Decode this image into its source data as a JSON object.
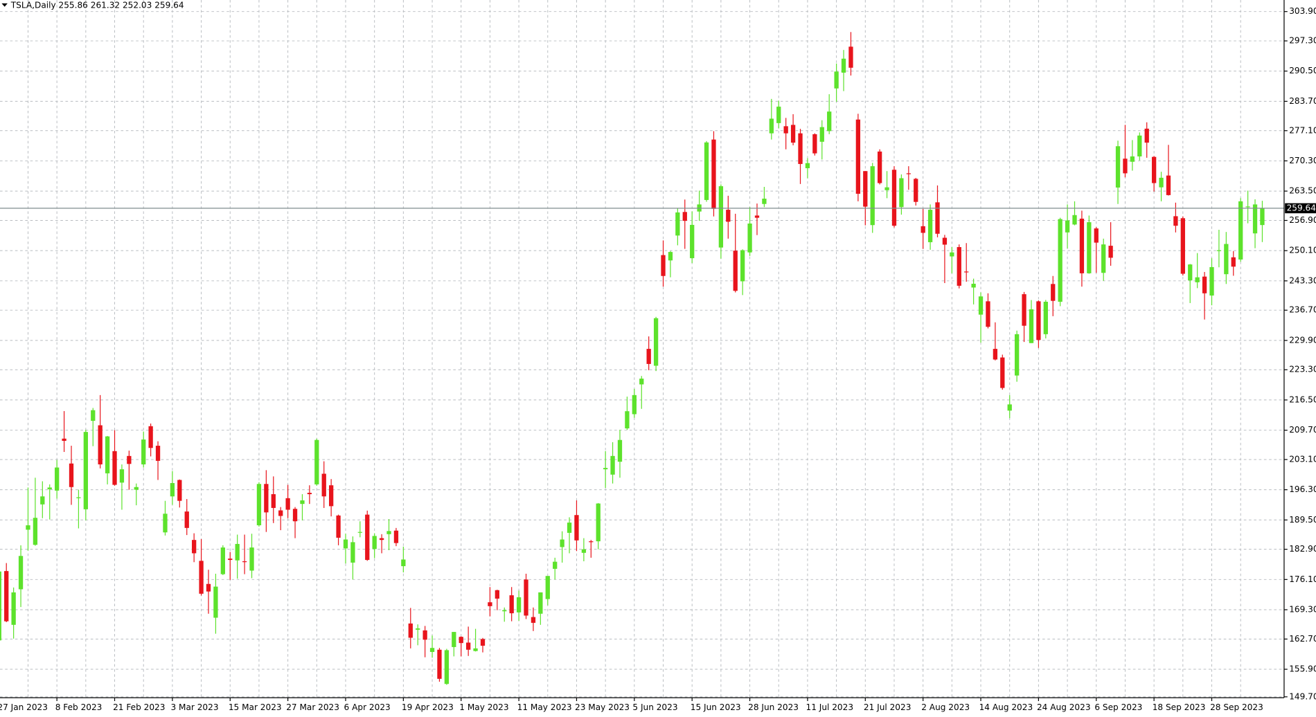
{
  "chart_data": {
    "type": "candlestick",
    "symbol": "TSLA,Daily",
    "categories": [
      "27 Jan 2023",
      null,
      null,
      null,
      null,
      null,
      null,
      null,
      "8 Feb 2023",
      null,
      null,
      null,
      null,
      null,
      null,
      null,
      "21 Feb 2023",
      null,
      null,
      null,
      null,
      null,
      null,
      null,
      "3 Mar 2023",
      null,
      null,
      null,
      null,
      null,
      null,
      null,
      "15 Mar 2023",
      null,
      null,
      null,
      null,
      null,
      null,
      null,
      "27 Mar 2023",
      null,
      null,
      null,
      null,
      null,
      null,
      null,
      "6 Apr 2023",
      null,
      null,
      null,
      null,
      null,
      null,
      null,
      "19 Apr 2023",
      null,
      null,
      null,
      null,
      null,
      null,
      null,
      "1 May 2023",
      null,
      null,
      null,
      null,
      null,
      null,
      null,
      "11 May 2023",
      null,
      null,
      null,
      null,
      null,
      null,
      null,
      "23 May 2023",
      null,
      null,
      null,
      null,
      null,
      null,
      null,
      "5 Jun 2023",
      null,
      null,
      null,
      null,
      null,
      null,
      null,
      "15 Jun 2023",
      null,
      null,
      null,
      null,
      null,
      null,
      null,
      "28 Jun 2023",
      null,
      null,
      null,
      null,
      null,
      null,
      null,
      "11 Jul 2023",
      null,
      null,
      null,
      null,
      null,
      null,
      null,
      "21 Jul 2023",
      null,
      null,
      null,
      null,
      null,
      null,
      null,
      "2 Aug 2023",
      null,
      null,
      null,
      null,
      null,
      null,
      null,
      "14 Aug 2023",
      null,
      null,
      null,
      null,
      null,
      null,
      null,
      "24 Aug 2023",
      null,
      null,
      null,
      null,
      null,
      null,
      null,
      "6 Sep 2023",
      null,
      null,
      null,
      null,
      null,
      null,
      null,
      "18 Sep 2023",
      null,
      null,
      null,
      null,
      null,
      null,
      null,
      "28 Sep 2023",
      null,
      null,
      null,
      null,
      null,
      null,
      null
    ],
    "open": [
      162.4,
      178.0,
      165.9,
      173.9,
      187.3,
      183.9,
      193.0,
      196.4,
      196.1,
      207.8,
      202.2,
      194.4,
      191.9,
      211.8,
      210.8,
      199.99,
      204.99,
      197.9,
      203.9,
      196.3,
      202.0,
      210.6,
      206.2,
      186.7,
      194.8,
      198.5,
      191.4,
      185.0,
      180.3,
      175.1,
      167.5,
      177.3,
      180.8,
      180.4,
      180.2,
      178.1,
      188.3,
      197.6,
      195.3,
      191.65,
      194.4,
      192.0,
      193.1,
      195.6,
      197.5,
      199.9,
      197.3,
      190.5,
      183.1,
      179.9,
      186.7,
      190.7,
      182.96,
      185.4,
      186.3,
      187.1,
      179.1,
      166.2,
      164.8,
      164.65,
      159.8,
      160.3,
      152.6,
      160.9,
      163.2,
      161.9,
      160.0,
      162.7,
      170.98,
      173.7,
      168.95,
      172.55,
      168.7,
      176.1,
      167.65,
      168.4,
      171.7,
      178.5,
      183.4,
      186.6,
      190.6,
      182.1,
      184.7,
      184.7,
      200.9,
      199.7,
      202.6,
      210.1,
      213.3,
      220.0,
      228.0,
      224.2,
      249.1,
      247.9,
      253.5,
      258.8,
      248.4,
      258.9,
      261.5,
      275.1,
      250.8,
      259.3,
      250.1,
      243.2,
      249.7,
      258.0,
      260.6,
      276.5,
      278.8,
      278.1,
      278.4,
      276.5,
      268.65,
      276.3,
      274.6,
      277.0,
      286.6,
      290.15,
      296.0,
      279.6,
      268.0,
      255.85,
      272.4,
      263.7,
      268.3,
      259.9,
      267.5,
      266.26,
      255.6,
      252.0,
      260.97,
      253.0,
      248.8,
      250.9,
      245.4,
      241.8,
      235.7,
      238.7,
      228.0,
      226.06,
      214.1,
      222.0,
      240.3,
      229.3,
      238.7,
      231.3,
      242.6,
      238.6,
      254.2,
      255.98,
      257.3,
      245.0,
      255.1,
      245.1,
      251.2,
      264.3,
      270.8,
      270.1,
      271.3,
      277.55,
      271.2,
      264.35,
      267.0,
      257.85,
      257.4,
      243.4,
      242.98,
      244.26,
      240.0,
      250.0,
      244.8,
      248.6,
      248.1,
      260.0,
      253.98,
      255.86
    ],
    "high": [
      177.9,
      179.8,
      174.3,
      183.8,
      196.8,
      199.0,
      198.2,
      197.5,
      203.0,
      214.0,
      206.2,
      196.3,
      209.8,
      214.7,
      217.6,
      208.4,
      209.7,
      201.99,
      205.1,
      197.7,
      209.4,
      211.2,
      207.2,
      193.8,
      200.5,
      198.6,
      194.2,
      186.5,
      185.2,
      178.3,
      177.4,
      183.8,
      182.3,
      186.2,
      186.2,
      186.4,
      198.0,
      200.7,
      199.3,
      192.4,
      197.4,
      192.4,
      195.3,
      197.3,
      207.8,
      202.7,
      198.7,
      190.7,
      186.4,
      185.8,
      189.2,
      191.6,
      186.5,
      186.3,
      189.7,
      187.7,
      183.5,
      169.7,
      166.0,
      165.65,
      163.5,
      160.7,
      160.5,
      164.3,
      163.3,
      165.5,
      165.0,
      162.95,
      174.4,
      173.8,
      169.8,
      174.4,
      173.6,
      177.4,
      169.8,
      173.2,
      176.8,
      181.0,
      186.95,
      190.1,
      193.9,
      185.4,
      185.0,
      193.3,
      205.0,
      207.0,
      209.8,
      217.25,
      219.0,
      221.9,
      230.8,
      235.2,
      252.4,
      250.0,
      259.7,
      261.6,
      258.95,
      263.6,
      274.75,
      276.99,
      265.0,
      262.45,
      258.4,
      250.4,
      259.9,
      260.7,
      264.45,
      284.25,
      283.85,
      279.97,
      280.8,
      277.5,
      270.9,
      276.5,
      279.45,
      285.3,
      292.2,
      295.26,
      299.29,
      280.9,
      268.0,
      269.85,
      272.9,
      268.0,
      269.1,
      267.25,
      269.1,
      266.47,
      259.5,
      260.5,
      264.77,
      253.65,
      250.9,
      251.5,
      251.8,
      243.8,
      240.7,
      240.5,
      233.97,
      226.7,
      217.6,
      232.1,
      240.8,
      238.98,
      238.9,
      239.0,
      244.4,
      257.5,
      260.5,
      261.2,
      259.1,
      258.0,
      255.4,
      252.8,
      256.5,
      274.85,
      278.4,
      274.98,
      276.7,
      278.98,
      271.4,
      267.85,
      273.9,
      260.9,
      257.8,
      247.1,
      249.55,
      245.3,
      248.4,
      254.8,
      254.3,
      250.0,
      261.9,
      263.6,
      261.65,
      261.32
    ],
    "low": [
      161.1,
      166.5,
      162.8,
      169.9,
      182.6,
      183.7,
      189.9,
      189.6,
      194.3,
      204.8,
      192.9,
      187.6,
      189.4,
      206.1,
      201.1,
      197.5,
      197.2,
      191.8,
      196.3,
      192.8,
      201.3,
      203.8,
      198.5,
      186.0,
      192.9,
      192.3,
      186.1,
      180.0,
      172.5,
      168.4,
      163.9,
      177.1,
      176.0,
      176.3,
      177.3,
      176.4,
      188.0,
      186.8,
      188.8,
      187.2,
      189.9,
      185.4,
      189.4,
      193.1,
      197.2,
      192.2,
      190.3,
      183.8,
      179.7,
      176.1,
      185.6,
      180.3,
      180.9,
      182.0,
      182.7,
      183.6,
      177.7,
      160.6,
      161.3,
      158.6,
      158.5,
      153.1,
      152.4,
      158.8,
      158.8,
      158.9,
      159.9,
      159.7,
      167.8,
      169.2,
      166.6,
      166.7,
      166.8,
      167.2,
      164.5,
      165.9,
      170.3,
      176.1,
      179.9,
      182.0,
      182.5,
      180.2,
      181.0,
      182.9,
      196.7,
      197.7,
      199.0,
      209.75,
      212.5,
      214.5,
      223.2,
      223.0,
      242.0,
      244.1,
      251.3,
      250.5,
      247.3,
      256.8,
      261.1,
      257.8,
      248.3,
      252.8,
      240.7,
      240.1,
      248.9,
      253.6,
      259.9,
      275.1,
      277.6,
      272.9,
      273.8,
      265.1,
      266.4,
      271.5,
      270.6,
      276.3,
      283.6,
      286.0,
      289.5,
      261.2,
      255.8,
      254.1,
      265.0,
      261.9,
      255.3,
      258.2,
      263.8,
      260.25,
      250.5,
      250.3,
      253.1,
      242.8,
      245.0,
      241.6,
      243.1,
      238.0,
      229.4,
      232.6,
      225.4,
      218.8,
      212.4,
      220.6,
      229.55,
      229.3,
      228.2,
      230.35,
      235.35,
      237.6,
      250.6,
      255.8,
      242.0,
      244.9,
      245.1,
      243.3,
      246.7,
      260.6,
      266.6,
      268.1,
      270.4,
      271.0,
      263.4,
      261.2,
      262.5,
      254.2,
      244.5,
      238.3,
      241.66,
      234.6,
      237.8,
      246.35,
      242.6,
      244.45,
      247.6,
      256.25,
      250.65,
      252.03
    ],
    "close": [
      177.9,
      166.7,
      173.2,
      181.4,
      188.3,
      189.98,
      194.8,
      196.8,
      201.3,
      207.3,
      196.9,
      194.6,
      209.3,
      214.2,
      202.0,
      208.3,
      197.4,
      200.9,
      202.1,
      196.9,
      207.6,
      205.7,
      202.8,
      190.9,
      197.8,
      193.8,
      187.7,
      182.0,
      172.9,
      173.4,
      174.5,
      183.3,
      180.5,
      184.1,
      180.1,
      183.3,
      197.6,
      191.2,
      192.2,
      190.4,
      191.8,
      189.2,
      193.9,
      195.3,
      207.5,
      194.8,
      192.6,
      185.5,
      185.1,
      184.5,
      186.8,
      180.5,
      185.9,
      185.0,
      187.0,
      184.3,
      180.6,
      162.99,
      165.1,
      162.55,
      160.7,
      153.75,
      160.2,
      164.3,
      161.8,
      160.3,
      160.6,
      161.2,
      170.1,
      171.8,
      169.2,
      168.5,
      172.1,
      167.98,
      166.35,
      173.2,
      176.9,
      180.1,
      185.1,
      188.9,
      184.9,
      182.9,
      184.5,
      193.2,
      201.2,
      203.9,
      207.5,
      213.97,
      217.6,
      221.3,
      224.6,
      234.9,
      244.4,
      249.8,
      258.7,
      256.8,
      255.9,
      260.5,
      274.45,
      259.5,
      264.6,
      256.6,
      241.05,
      250.2,
      256.2,
      257.5,
      261.8,
      279.8,
      282.5,
      276.5,
      274.4,
      269.6,
      269.8,
      271.99,
      277.9,
      281.4,
      290.4,
      293.3,
      291.26,
      262.9,
      260.0,
      269.1,
      265.3,
      264.35,
      255.7,
      266.4,
      267.4,
      261.07,
      254.1,
      259.3,
      253.9,
      251.45,
      249.7,
      242.2,
      245.3,
      242.65,
      239.8,
      232.96,
      225.6,
      219.2,
      215.5,
      231.3,
      233.2,
      236.9,
      230.0,
      238.6,
      238.8,
      257.2,
      256.9,
      258.1,
      245.0,
      256.5,
      251.9,
      251.5,
      248.5,
      273.6,
      267.5,
      271.3,
      276.0,
      274.4,
      265.3,
      266.5,
      262.6,
      255.7,
      244.9,
      246.99,
      244.1,
      240.5,
      246.4,
      250.2,
      251.6,
      246.5,
      261.2,
      260.05,
      260.5,
      259.64
    ],
    "ylim": [
      149.5,
      306.5
    ],
    "yticks": [
      {
        "value": 303.9,
        "label": "303.90"
      },
      {
        "value": 297.3,
        "label": "297.30"
      },
      {
        "value": 290.5,
        "label": "290.50"
      },
      {
        "value": 283.7,
        "label": "283.70"
      },
      {
        "value": 277.1,
        "label": "277.10"
      },
      {
        "value": 270.3,
        "label": "270.30"
      },
      {
        "value": 263.5,
        "label": "263.50"
      },
      {
        "value": 256.9,
        "label": "256.90"
      },
      {
        "value": 250.1,
        "label": "250.10"
      },
      {
        "value": 243.3,
        "label": "243.30"
      },
      {
        "value": 236.7,
        "label": "236.70"
      },
      {
        "value": 229.9,
        "label": "229.90"
      },
      {
        "value": 223.3,
        "label": "223.30"
      },
      {
        "value": 216.5,
        "label": "216.50"
      },
      {
        "value": 209.7,
        "label": "209.70"
      },
      {
        "value": 203.1,
        "label": "203.10"
      },
      {
        "value": 196.3,
        "label": "196.30"
      },
      {
        "value": 189.5,
        "label": "189.50"
      },
      {
        "value": 182.9,
        "label": "182.90"
      },
      {
        "value": 176.1,
        "label": "176.10"
      },
      {
        "value": 169.3,
        "label": "169.30"
      },
      {
        "value": 162.7,
        "label": "162.70"
      },
      {
        "value": 155.9,
        "label": "155.90"
      },
      {
        "value": 149.7,
        "label": "149.70"
      }
    ],
    "grid": true,
    "up_color": "#5de22c",
    "down_color": "#e8141c",
    "last_price_line": true
  }
}
